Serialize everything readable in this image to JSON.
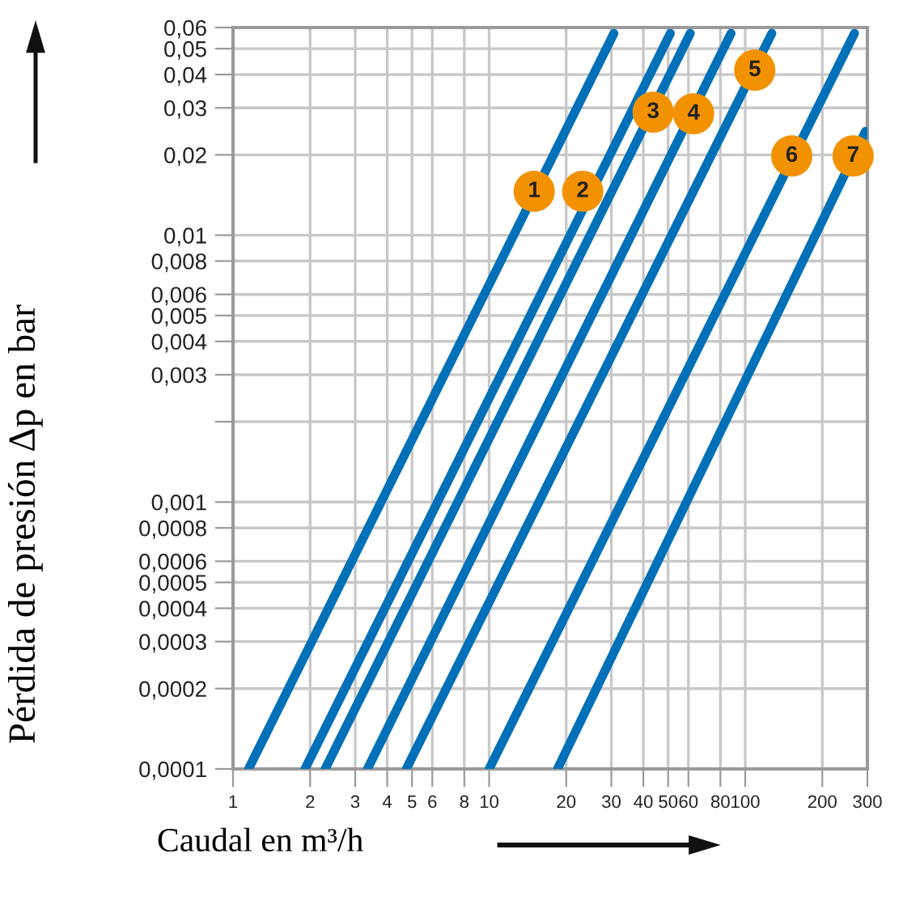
{
  "chart_data": {
    "type": "line",
    "xlabel": "Caudal en m³/h",
    "ylabel": "Pérdida de presión Δp en bar",
    "log": "xy",
    "grid": true,
    "legend": false,
    "marker": "none",
    "line_style": "solid",
    "xlim": [
      1,
      300
    ],
    "ylim": [
      0.0001,
      0.06
    ],
    "xticks": [
      1,
      2,
      3,
      4,
      5,
      6,
      8,
      10,
      20,
      30,
      40,
      50,
      60,
      80,
      100,
      200,
      300
    ],
    "yticks": [
      {
        "value": 0.0001,
        "label": "0,0001"
      },
      {
        "value": 0.0002,
        "label": "0,0002"
      },
      {
        "value": 0.0003,
        "label": "0,0003"
      },
      {
        "value": 0.0004,
        "label": "0,0004"
      },
      {
        "value": 0.0005,
        "label": "0,0005"
      },
      {
        "value": 0.0006,
        "label": "0,0006"
      },
      {
        "value": 0.0008,
        "label": "0,0008"
      },
      {
        "value": 0.001,
        "label": "0,001"
      },
      {
        "value": 0.002,
        "label": null
      },
      {
        "value": 0.003,
        "label": "0,003"
      },
      {
        "value": 0.004,
        "label": "0,004"
      },
      {
        "value": 0.005,
        "label": "0,005"
      },
      {
        "value": 0.006,
        "label": "0,006"
      },
      {
        "value": 0.008,
        "label": "0,008"
      },
      {
        "value": 0.01,
        "label": "0,01"
      },
      {
        "value": 0.02,
        "label": "0,02"
      },
      {
        "value": 0.03,
        "label": "0,03"
      },
      {
        "value": 0.04,
        "label": "0,04"
      },
      {
        "value": 0.05,
        "label": "0,05"
      },
      {
        "value": 0.06,
        "label": "0,06"
      }
    ],
    "series": [
      {
        "color": "#0070b8",
        "x": [
          1.15,
          30.7
        ],
        "values": [
          0.0001,
          0.057
        ]
      },
      {
        "color": "#0070b8",
        "x": [
          1.91,
          51
        ],
        "values": [
          0.0001,
          0.057
        ]
      },
      {
        "color": "#0070b8",
        "x": [
          2.29,
          61
        ],
        "values": [
          0.0001,
          0.057
        ]
      },
      {
        "color": "#0070b8",
        "x": [
          3.35,
          88
        ],
        "values": [
          0.0001,
          0.057
        ]
      },
      {
        "color": "#0070b8",
        "x": [
          4.75,
          127
        ],
        "values": [
          0.0001,
          0.057
        ]
      },
      {
        "color": "#0070b8",
        "x": [
          10,
          267
        ],
        "values": [
          0.0001,
          0.057
        ]
      },
      {
        "color": "#0070b8",
        "x": [
          18.5,
          295
        ],
        "values": [
          0.0001,
          0.0245
        ]
      }
    ],
    "annotations": [
      {
        "text": "1",
        "x": 15,
        "y": 0.0146
      },
      {
        "text": "2",
        "x": 23.2,
        "y": 0.0146
      },
      {
        "text": "3",
        "x": 43.7,
        "y": 0.0289
      },
      {
        "text": "4",
        "x": 62.9,
        "y": 0.0285
      },
      {
        "text": "5",
        "x": 109,
        "y": 0.0415
      },
      {
        "text": "6",
        "x": 152,
        "y": 0.0198
      },
      {
        "text": "7",
        "x": 264,
        "y": 0.0198
      }
    ]
  }
}
